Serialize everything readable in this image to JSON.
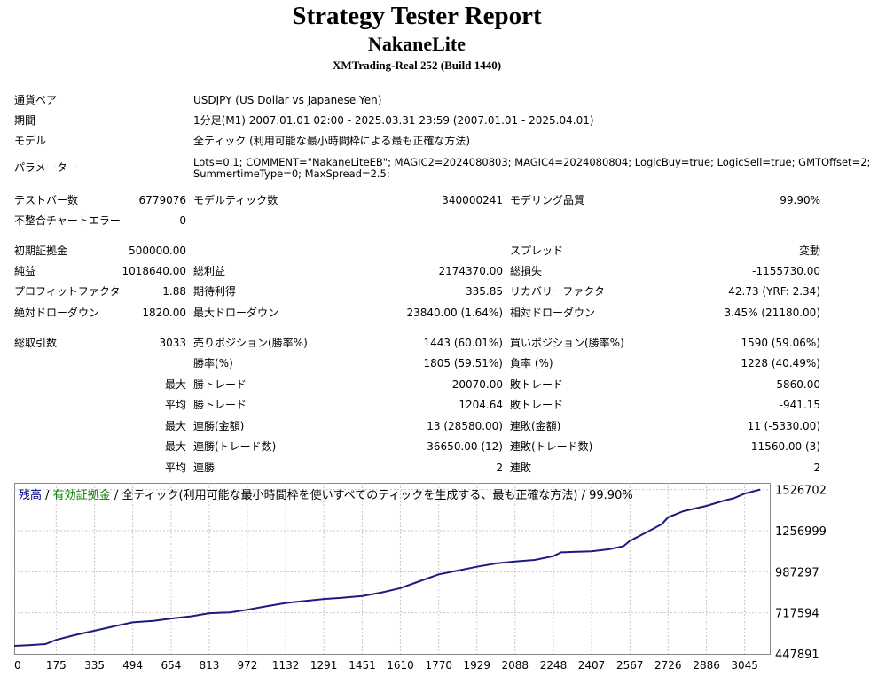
{
  "header": {
    "title": "Strategy Tester Report",
    "subtitle": "NakaneLite",
    "server": "XMTrading-Real 252 (Build 1440)"
  },
  "settings": {
    "pair_label": "通貨ペア",
    "pair_value": "USDJPY (US Dollar vs Japanese Yen)",
    "period_label": "期間",
    "period_value": "1分足(M1) 2007.01.01 02:00 - 2025.03.31 23:59 (2007.01.01 - 2025.04.01)",
    "model_label": "モデル",
    "model_value": "全ティック (利用可能な最小時間枠による最も正確な方法)",
    "params_label": "パラメーター",
    "params_line1": "Lots=0.1; COMMENT=\"NakaneLiteEB\"; MAGIC2=2024080803; MAGIC4=2024080804; LogicBuy=true; LogicSell=true; GMTOffset=2;",
    "params_line2": "SummertimeType=0; MaxSpread=2.5;"
  },
  "stats": {
    "bars_label": "テストバー数",
    "bars_value": "6779076",
    "ticks_label": "モデルティック数",
    "ticks_value": "340000241",
    "quality_label": "モデリング品質",
    "quality_value": "99.90%",
    "mismatch_label": "不整合チャートエラー",
    "mismatch_value": "0",
    "deposit_label": "初期証拠金",
    "deposit_value": "500000.00",
    "spread_label": "スプレッド",
    "spread_value": "変動",
    "net_label": "純益",
    "net_value": "1018640.00",
    "gross_profit_label": "総利益",
    "gross_profit_value": "2174370.00",
    "gross_loss_label": "総損失",
    "gross_loss_value": "-1155730.00",
    "pf_label": "プロフィットファクタ",
    "pf_value": "1.88",
    "expected_label": "期待利得",
    "expected_value": "335.85",
    "recovery_label": "リカバリーファクタ",
    "recovery_value": "42.73 (YRF: 2.34)",
    "abs_dd_label": "絶対ドローダウン",
    "abs_dd_value": "1820.00",
    "max_dd_label": "最大ドローダウン",
    "max_dd_value": "23840.00 (1.64%)",
    "rel_dd_label": "相対ドローダウン",
    "rel_dd_value": "3.45% (21180.00)"
  },
  "trades": {
    "total_label": "総取引数",
    "total_value": "3033",
    "short_label": "売りポジション(勝率%)",
    "short_value": "1443 (60.01%)",
    "long_label": "買いポジション(勝率%)",
    "long_value": "1590 (59.06%)",
    "winrate_label": "勝率(%)",
    "winrate_value": "1805 (59.51%)",
    "lossrate_label": "負率 (%)",
    "lossrate_value": "1228 (40.49%)",
    "max_label": "最大",
    "avg_label": "平均",
    "win_trade_label": "勝トレード",
    "loss_trade_label": "敗トレード",
    "max_win_value": "20070.00",
    "max_loss_value": "-5860.00",
    "avg_win_value": "1204.64",
    "avg_loss_value": "-941.15",
    "consec_win_amt_label": "連勝(金額)",
    "consec_win_amt_value": "13 (28580.00)",
    "consec_loss_amt_label": "連敗(金額)",
    "consec_loss_amt_value": "11 (-5330.00)",
    "consec_win_cnt_label": "連勝(トレード数)",
    "consec_win_cnt_value": "36650.00 (12)",
    "consec_loss_cnt_label": "連敗(トレード数)",
    "consec_loss_cnt_value": "-11560.00 (3)",
    "avg_consec_win_label": "連勝",
    "avg_consec_win_value": "2",
    "avg_consec_loss_label": "連敗",
    "avg_consec_loss_value": "2"
  },
  "chart_data": {
    "type": "line",
    "legend": {
      "balance": "残高",
      "sep1": " / ",
      "equity": "有効証拠金",
      "rest": " / 全ティック(利用可能な最小時間枠を使いすべてのティックを生成する、最も正確な方法) / 99.90%"
    },
    "colors": {
      "balance": "#000080",
      "equity": "#008000",
      "grid": "#c8c8c8",
      "line": "#1c1c80"
    },
    "xlim": [
      0,
      3150
    ],
    "ylim": [
      447891,
      1571200
    ],
    "x_ticks": [
      0,
      175,
      335,
      494,
      654,
      813,
      972,
      1132,
      1291,
      1451,
      1610,
      1770,
      1929,
      2088,
      2248,
      2407,
      2567,
      2726,
      2886,
      3045
    ],
    "y_ticks": [
      447891,
      717594,
      987297,
      1256999,
      1526702
    ],
    "series": [
      {
        "values": [
          [
            0,
            500000
          ],
          [
            60,
            505000
          ],
          [
            130,
            512000
          ],
          [
            175,
            540000
          ],
          [
            250,
            570000
          ],
          [
            335,
            600000
          ],
          [
            420,
            630000
          ],
          [
            494,
            655000
          ],
          [
            580,
            665000
          ],
          [
            654,
            680000
          ],
          [
            740,
            695000
          ],
          [
            813,
            715000
          ],
          [
            900,
            720000
          ],
          [
            972,
            738000
          ],
          [
            1050,
            760000
          ],
          [
            1132,
            782000
          ],
          [
            1210,
            795000
          ],
          [
            1291,
            808000
          ],
          [
            1360,
            815000
          ],
          [
            1451,
            828000
          ],
          [
            1530,
            850000
          ],
          [
            1610,
            880000
          ],
          [
            1690,
            925000
          ],
          [
            1770,
            970000
          ],
          [
            1850,
            995000
          ],
          [
            1929,
            1020000
          ],
          [
            2010,
            1042000
          ],
          [
            2088,
            1055000
          ],
          [
            2170,
            1065000
          ],
          [
            2248,
            1090000
          ],
          [
            2280,
            1115000
          ],
          [
            2330,
            1118000
          ],
          [
            2407,
            1122000
          ],
          [
            2480,
            1135000
          ],
          [
            2540,
            1155000
          ],
          [
            2567,
            1190000
          ],
          [
            2640,
            1250000
          ],
          [
            2700,
            1300000
          ],
          [
            2726,
            1345000
          ],
          [
            2790,
            1385000
          ],
          [
            2886,
            1420000
          ],
          [
            2960,
            1455000
          ],
          [
            3000,
            1470000
          ],
          [
            3045,
            1500000
          ],
          [
            3110,
            1526702
          ]
        ]
      }
    ]
  }
}
